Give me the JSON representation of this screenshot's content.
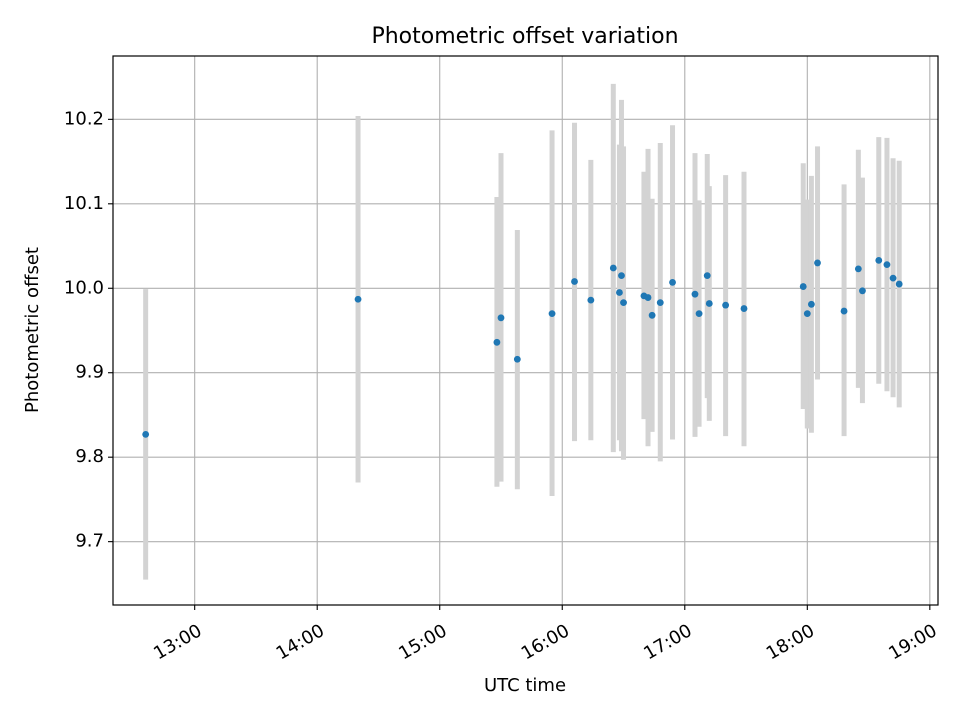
{
  "chart_data": {
    "type": "scatter",
    "title": "Photometric offset variation",
    "xlabel": "UTC time",
    "ylabel": "Photometric offset",
    "xlim": [
      "12:20",
      "19:04"
    ],
    "ylim": [
      9.625,
      10.275
    ],
    "grid": true,
    "x_ticks": [
      "13:00",
      "14:00",
      "15:00",
      "16:00",
      "17:00",
      "18:00",
      "19:00"
    ],
    "y_ticks": [
      "9.7",
      "9.8",
      "9.9",
      "10.0",
      "10.1",
      "10.2"
    ],
    "colors": {
      "point": "#1f77b4",
      "errorbar": "#d3d3d3",
      "grid": "#b0b0b0",
      "axes": "#000000"
    },
    "series": [
      {
        "points": [
          {
            "x": "12:36",
            "y": 9.827,
            "ylow": 9.655,
            "yhigh": 9.999
          },
          {
            "x": "14:20",
            "y": 9.987,
            "ylow": 9.77,
            "yhigh": 10.204
          },
          {
            "x": "15:28",
            "y": 9.936,
            "ylow": 9.765,
            "yhigh": 10.108
          },
          {
            "x": "15:30",
            "y": 9.965,
            "ylow": 9.771,
            "yhigh": 10.16
          },
          {
            "x": "15:38",
            "y": 9.916,
            "ylow": 9.762,
            "yhigh": 10.069
          },
          {
            "x": "15:55",
            "y": 9.97,
            "ylow": 9.754,
            "yhigh": 10.187
          },
          {
            "x": "16:06",
            "y": 10.008,
            "ylow": 9.819,
            "yhigh": 10.196
          },
          {
            "x": "16:14",
            "y": 9.986,
            "ylow": 9.82,
            "yhigh": 10.152
          },
          {
            "x": "16:25",
            "y": 10.024,
            "ylow": 9.806,
            "yhigh": 10.242
          },
          {
            "x": "16:28",
            "y": 9.995,
            "ylow": 9.82,
            "yhigh": 10.17
          },
          {
            "x": "16:29",
            "y": 10.015,
            "ylow": 9.807,
            "yhigh": 10.223
          },
          {
            "x": "16:30",
            "y": 9.983,
            "ylow": 9.797,
            "yhigh": 10.168
          },
          {
            "x": "16:40",
            "y": 9.991,
            "ylow": 9.845,
            "yhigh": 10.138
          },
          {
            "x": "16:42",
            "y": 9.989,
            "ylow": 9.813,
            "yhigh": 10.165
          },
          {
            "x": "16:44",
            "y": 9.968,
            "ylow": 9.83,
            "yhigh": 10.106
          },
          {
            "x": "16:48",
            "y": 9.983,
            "ylow": 9.795,
            "yhigh": 10.172
          },
          {
            "x": "16:54",
            "y": 10.007,
            "ylow": 9.821,
            "yhigh": 10.193
          },
          {
            "x": "17:05",
            "y": 9.993,
            "ylow": 9.824,
            "yhigh": 10.16
          },
          {
            "x": "17:07",
            "y": 9.97,
            "ylow": 9.836,
            "yhigh": 10.104
          },
          {
            "x": "17:11",
            "y": 10.015,
            "ylow": 9.87,
            "yhigh": 10.159
          },
          {
            "x": "17:12",
            "y": 9.982,
            "ylow": 9.843,
            "yhigh": 10.121
          },
          {
            "x": "17:20",
            "y": 9.98,
            "ylow": 9.825,
            "yhigh": 10.134
          },
          {
            "x": "17:29",
            "y": 9.976,
            "ylow": 9.813,
            "yhigh": 10.138
          },
          {
            "x": "17:58",
            "y": 10.002,
            "ylow": 9.857,
            "yhigh": 10.148
          },
          {
            "x": "18:00",
            "y": 9.97,
            "ylow": 9.834,
            "yhigh": 10.105
          },
          {
            "x": "18:02",
            "y": 9.981,
            "ylow": 9.829,
            "yhigh": 10.133
          },
          {
            "x": "18:05",
            "y": 10.03,
            "ylow": 9.892,
            "yhigh": 10.168
          },
          {
            "x": "18:18",
            "y": 9.973,
            "ylow": 9.825,
            "yhigh": 10.123
          },
          {
            "x": "18:25",
            "y": 10.023,
            "ylow": 9.882,
            "yhigh": 10.164
          },
          {
            "x": "18:27",
            "y": 9.997,
            "ylow": 9.864,
            "yhigh": 10.131
          },
          {
            "x": "18:35",
            "y": 10.033,
            "ylow": 9.887,
            "yhigh": 10.179
          },
          {
            "x": "18:39",
            "y": 10.028,
            "ylow": 9.878,
            "yhigh": 10.178
          },
          {
            "x": "18:42",
            "y": 10.012,
            "ylow": 9.871,
            "yhigh": 10.154
          },
          {
            "x": "18:45",
            "y": 10.005,
            "ylow": 9.859,
            "yhigh": 10.151
          }
        ]
      }
    ]
  }
}
